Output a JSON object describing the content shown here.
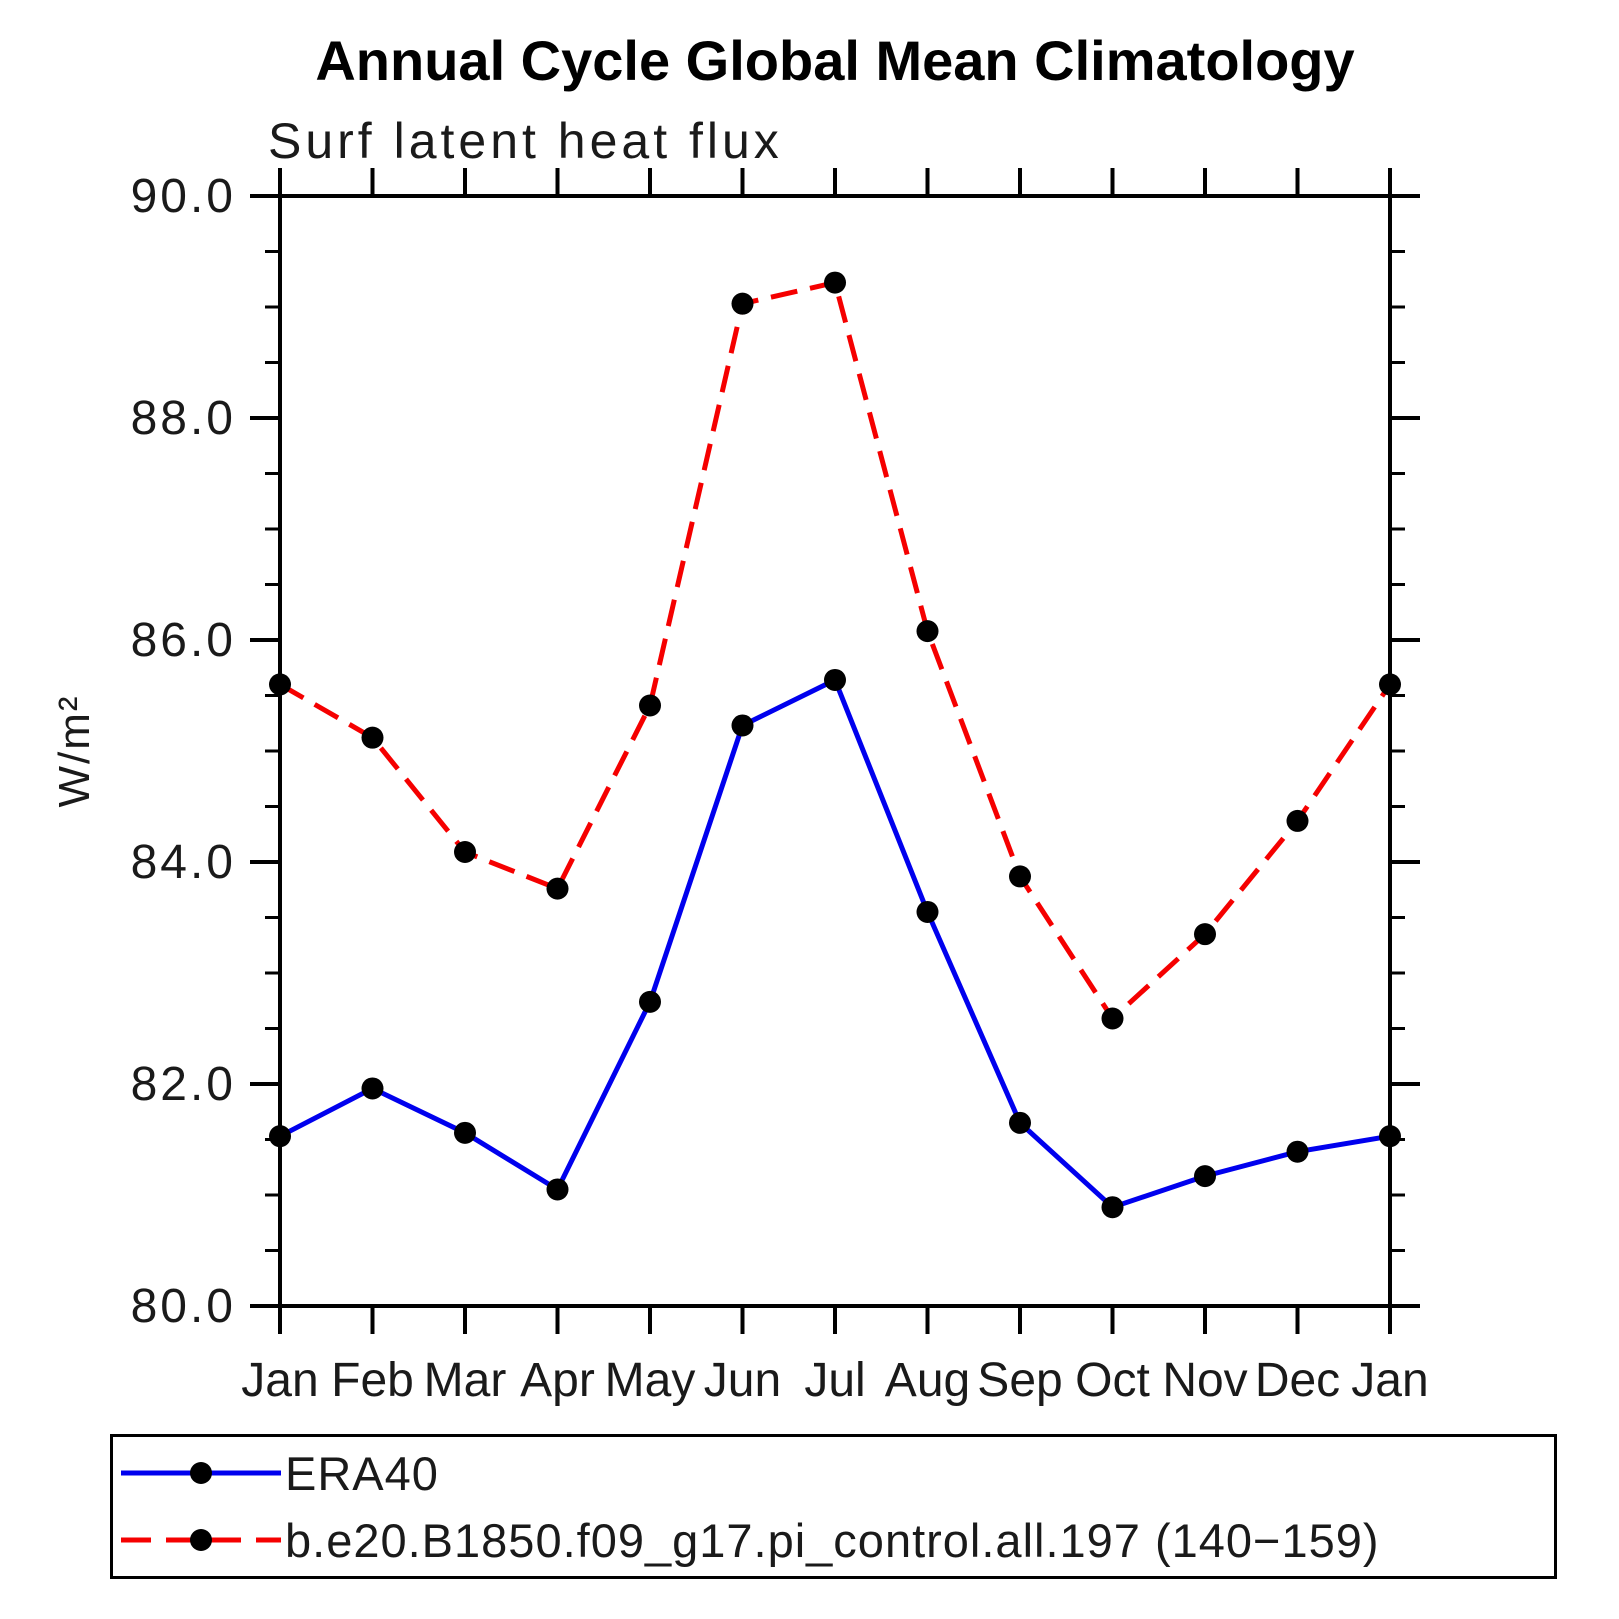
{
  "title": "Annual Cycle Global Mean Climatology",
  "subtitle": "Surf latent heat flux",
  "y_axis_title": "W/m²",
  "legend": {
    "items": [
      {
        "label": "ERA40",
        "color": "#0000ee",
        "style": "solid",
        "marker_color": "#000000"
      },
      {
        "label": "b.e20.B1850.f09_g17.pi_control.all.197 (140−159)",
        "color": "#f50000",
        "style": "dashed",
        "marker_color": "#000000"
      }
    ]
  },
  "chart_data": {
    "type": "line",
    "title": "Annual Cycle Global Mean Climatology",
    "subtitle": "Surf latent heat flux",
    "ylabel": "W/m²",
    "xlabel": "",
    "categories": [
      "Jan",
      "Feb",
      "Mar",
      "Apr",
      "May",
      "Jun",
      "Jul",
      "Aug",
      "Sep",
      "Oct",
      "Nov",
      "Dec",
      "Jan"
    ],
    "series": [
      {
        "name": "ERA40",
        "color": "#0000ee",
        "line_style": "solid",
        "marker": "circle",
        "marker_color": "#000000",
        "values": [
          81.53,
          81.96,
          81.56,
          81.05,
          82.74,
          85.23,
          85.64,
          83.55,
          81.65,
          80.89,
          81.17,
          81.39,
          81.53
        ]
      },
      {
        "name": "b.e20.B1850.f09_g17.pi_control.all.197 (140−159)",
        "color": "#f50000",
        "line_style": "dashed",
        "marker": "circle",
        "marker_color": "#000000",
        "values": [
          85.6,
          85.12,
          84.09,
          83.76,
          85.41,
          89.03,
          89.22,
          86.08,
          83.87,
          82.59,
          83.35,
          84.37,
          85.6
        ]
      }
    ],
    "ylim": [
      80.0,
      90.0
    ],
    "ytick_major": [
      80.0,
      82.0,
      84.0,
      86.0,
      88.0,
      90.0
    ],
    "ytick_labels": [
      "80.0",
      "82.0",
      "84.0",
      "86.0",
      "88.0",
      "90.0"
    ],
    "ytick_minor_step": 0.5,
    "grid": false,
    "legend_position": "bottom"
  }
}
